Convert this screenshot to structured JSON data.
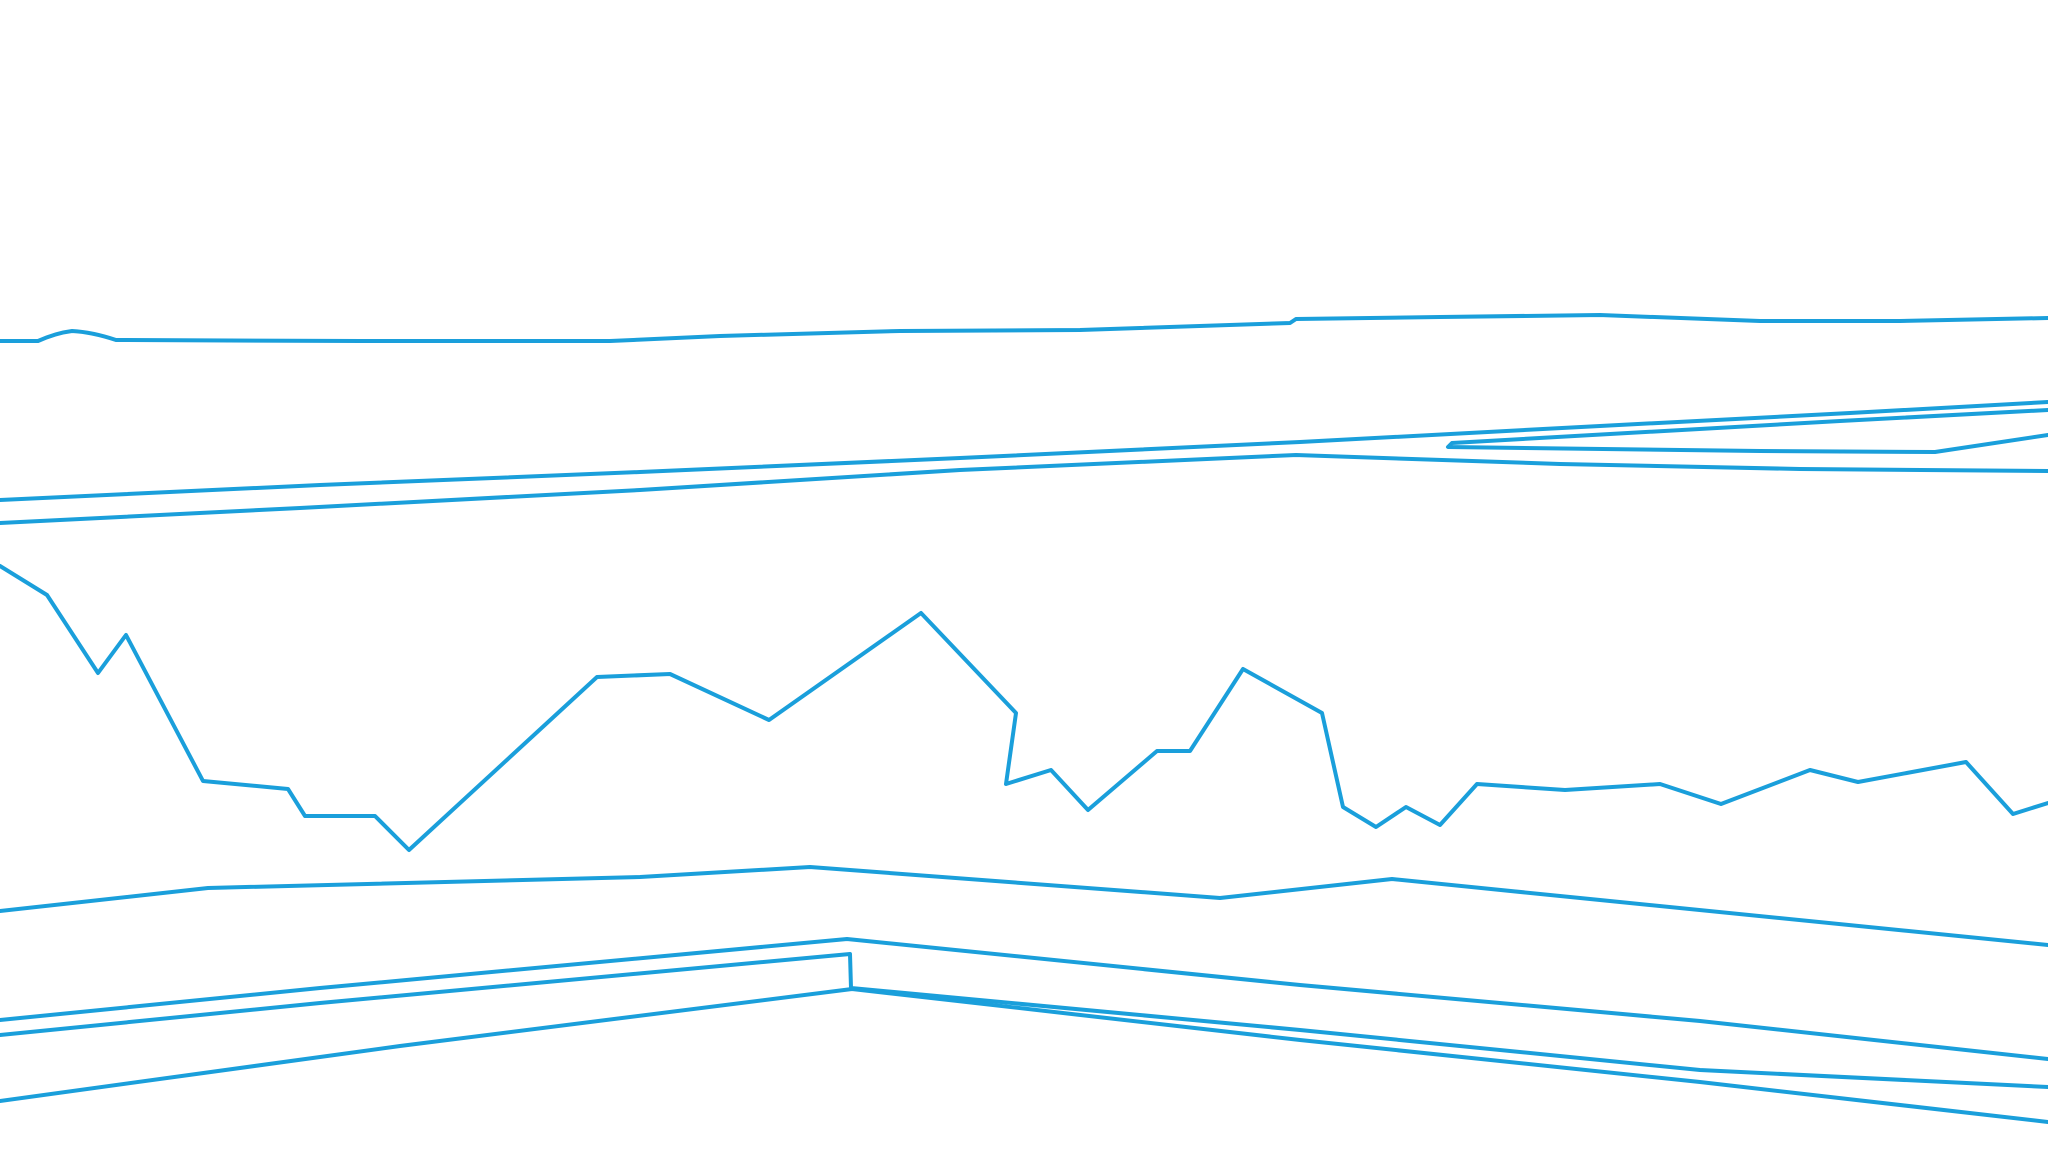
{
  "line_color": "#1a9fdb",
  "lines": [
    {
      "name": "top-wavy-line"
    },
    {
      "name": "upper-long-line"
    },
    {
      "name": "upper-right-bracket-line"
    },
    {
      "name": "upper-left-long-line"
    },
    {
      "name": "jagged-profile-line"
    },
    {
      "name": "middle-broken-line"
    },
    {
      "name": "lower-roof-line-1"
    },
    {
      "name": "lower-roof-line-2"
    },
    {
      "name": "lower-roof-line-3"
    }
  ]
}
